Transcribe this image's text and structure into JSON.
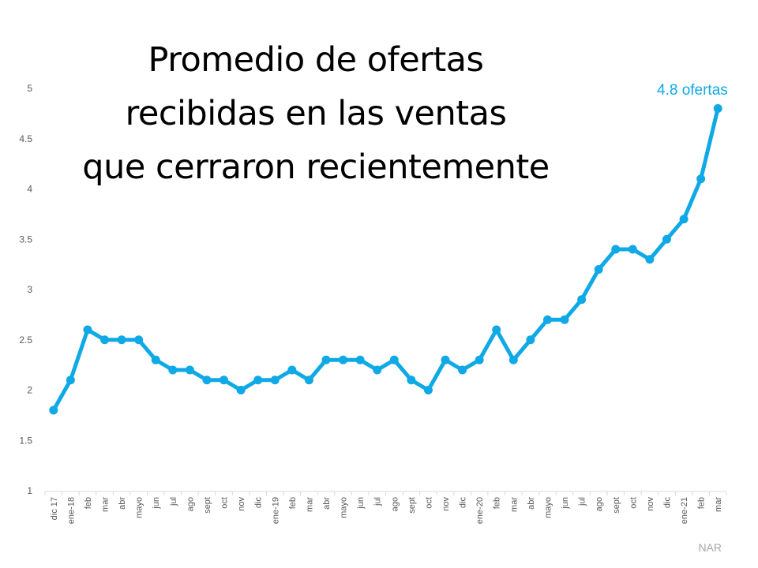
{
  "title": {
    "lines": [
      "Promedio de ofertas",
      "recibidas en las ventas",
      "que cerraron recientemente"
    ]
  },
  "annotation": "4.8 ofertas",
  "source": "NAR",
  "colors": {
    "line": "#0fa9e6",
    "axis_text": "#595959",
    "axis_line": "#d9d9d9",
    "source": "#a6a6a6"
  },
  "chart_data": {
    "type": "line",
    "title": "Promedio de ofertas recibidas en las ventas que cerraron recientemente",
    "xlabel": "",
    "ylabel": "",
    "ylim": [
      1,
      5
    ],
    "yticks": [
      1,
      1.5,
      2,
      2.5,
      3,
      3.5,
      4,
      4.5,
      5
    ],
    "grid": false,
    "legend": null,
    "annotations": [
      {
        "text": "4.8 ofertas",
        "at": "mar (2021)"
      }
    ],
    "categories": [
      "dic 17",
      "ene-18",
      "feb",
      "mar",
      "abr",
      "mayo",
      "jun",
      "jul",
      "ago",
      "sept",
      "oct",
      "nov",
      "dic",
      "ene-19",
      "feb",
      "mar",
      "abr",
      "mayo",
      "jun",
      "jul",
      "ago",
      "sept",
      "oct",
      "nov",
      "dic",
      "ene-20",
      "feb",
      "mar",
      "abr",
      "mayo",
      "jun",
      "jul",
      "ago",
      "sept",
      "oct",
      "nov",
      "dic",
      "ene-21",
      "feb",
      "mar"
    ],
    "series": [
      {
        "name": "Promedio de ofertas",
        "values": [
          1.8,
          2.1,
          2.6,
          2.5,
          2.5,
          2.5,
          2.3,
          2.2,
          2.2,
          2.1,
          2.1,
          2.0,
          2.1,
          2.1,
          2.2,
          2.1,
          2.3,
          2.3,
          2.3,
          2.2,
          2.3,
          2.1,
          2.0,
          2.3,
          2.2,
          2.3,
          2.6,
          2.3,
          2.5,
          2.7,
          2.7,
          2.9,
          3.2,
          3.4,
          3.4,
          3.3,
          3.5,
          3.7,
          4.1,
          4.8
        ]
      }
    ]
  }
}
